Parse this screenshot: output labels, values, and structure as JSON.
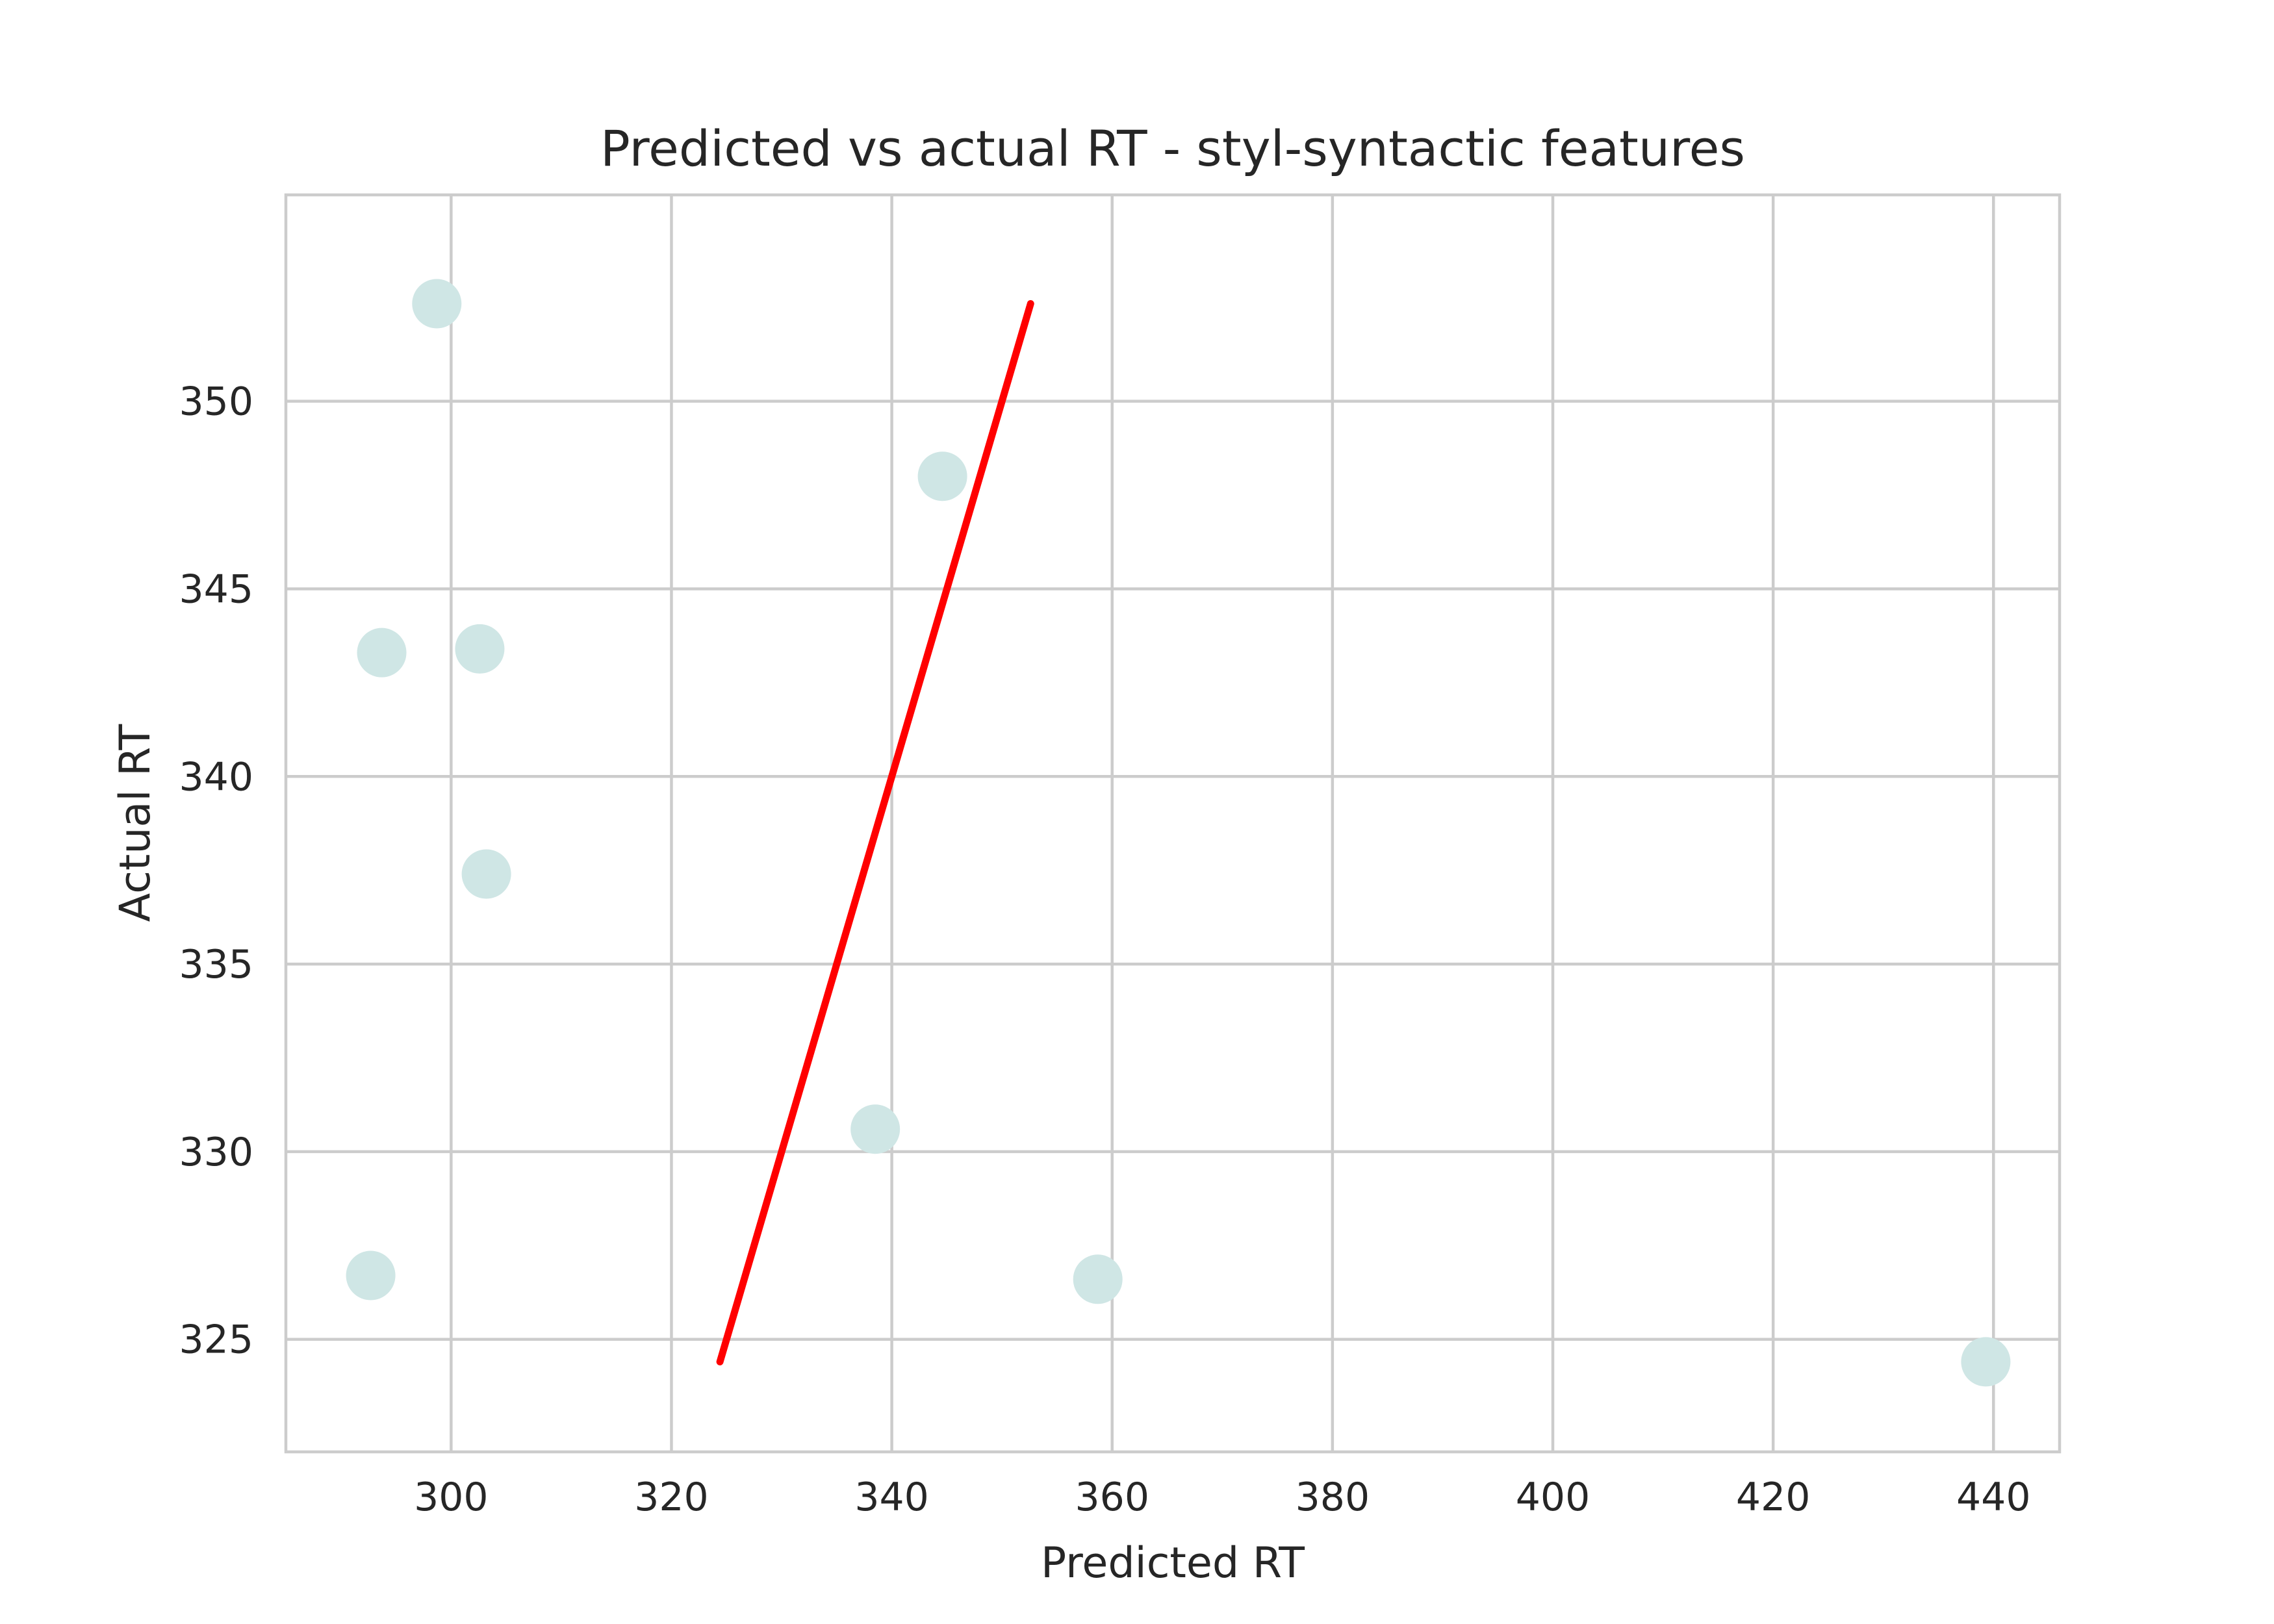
{
  "chart_data": {
    "type": "scatter",
    "title": "Predicted vs actual RT - styl-syntactic features",
    "xlabel": "Predicted RT",
    "ylabel": "Actual RT",
    "xlim": [
      285,
      446
    ],
    "ylim": [
      322.0,
      355.5
    ],
    "xticks": [
      300,
      320,
      340,
      360,
      380,
      400,
      420,
      440
    ],
    "yticks": [
      325,
      330,
      335,
      340,
      345,
      350
    ],
    "grid": true,
    "legend": "none",
    "series": [
      {
        "type": "scatter",
        "color": "#cfe6e5",
        "points": [
          {
            "x": 298.7,
            "y": 352.6
          },
          {
            "x": 344.6,
            "y": 348.0
          },
          {
            "x": 293.7,
            "y": 343.3
          },
          {
            "x": 302.6,
            "y": 343.4
          },
          {
            "x": 303.2,
            "y": 337.4
          },
          {
            "x": 338.5,
            "y": 330.6
          },
          {
            "x": 292.7,
            "y": 326.7
          },
          {
            "x": 358.7,
            "y": 326.6
          },
          {
            "x": 439.3,
            "y": 324.4
          }
        ]
      },
      {
        "type": "line",
        "color": "#ff0000",
        "points": [
          {
            "x": 324.4,
            "y": 324.4
          },
          {
            "x": 352.6,
            "y": 352.6
          }
        ]
      }
    ]
  }
}
